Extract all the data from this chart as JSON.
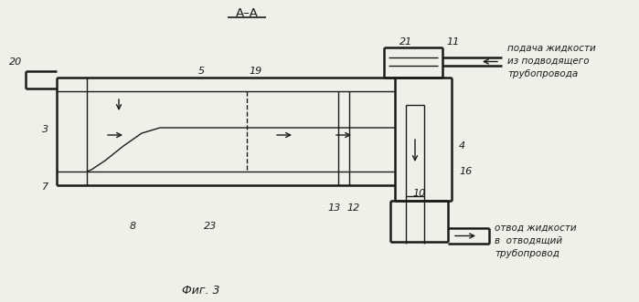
{
  "title": "А–А",
  "caption": "Фиг. 3",
  "bg_color": "#f0f0eb",
  "line_color": "#1a1a1a",
  "label_20": "20",
  "label_3": "3",
  "label_7": "7",
  "label_5": "5",
  "label_8": "8",
  "label_19": "19",
  "label_23": "23",
  "label_13": "13",
  "label_12": "12",
  "label_4": "4",
  "label_16": "16",
  "label_10": "10",
  "label_21": "21",
  "label_11": "11",
  "text_supply": "подача жидкости\nиз подводящего\nтрубопровода",
  "text_drain": "отвод жидкости\nв  отводящий\nтрубопровод",
  "figsize": [
    6.99,
    3.31
  ],
  "dpi": 100
}
